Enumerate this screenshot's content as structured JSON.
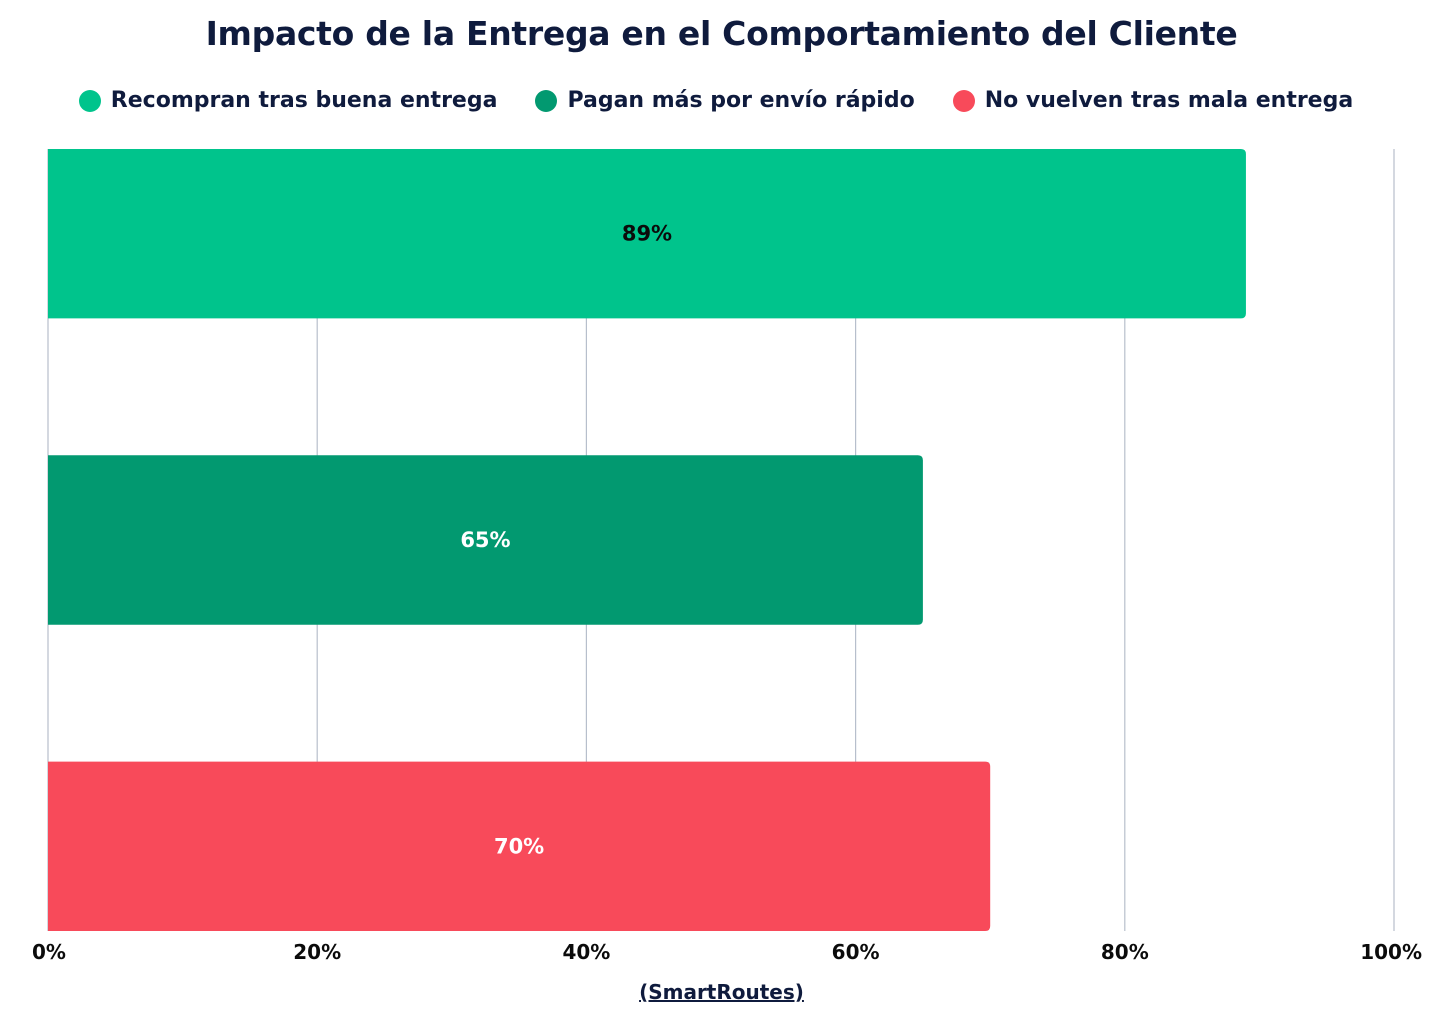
{
  "chart_data": {
    "type": "bar",
    "orientation": "horizontal",
    "title": "Impacto de la Entrega en el Comportamiento del Cliente",
    "categories": [
      "Recompran tras buena entrega",
      "Pagan más por envío rápido",
      "No vuelven tras mala entrega"
    ],
    "values": [
      89,
      65,
      70
    ],
    "data_labels": [
      "89%",
      "65%",
      "70%"
    ],
    "colors": [
      "#00c48c",
      "#029970",
      "#f84a5a"
    ],
    "label_colors": [
      "#0b0b0b",
      "#ffffff",
      "#ffffff"
    ],
    "xlim": [
      0,
      100
    ],
    "xticks": [
      0,
      20,
      40,
      60,
      80,
      100
    ],
    "xtick_labels": [
      "0%",
      "20%",
      "40%",
      "60%",
      "80%",
      "100%"
    ],
    "grid": true,
    "legend_position": "top-center",
    "xlabel": "(SmartRoutes)",
    "ylabel": ""
  }
}
